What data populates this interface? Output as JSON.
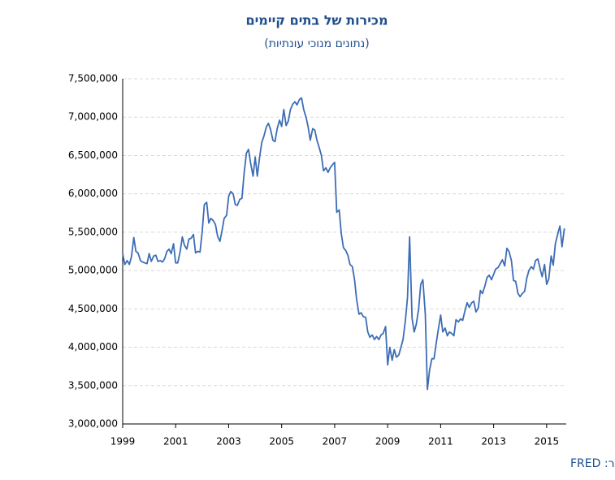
{
  "chart_data": {
    "type": "line",
    "title": "מכירות של בתים קיימים",
    "subtitle": "(נתונים מנוכי עונתיות)",
    "source": "מקור: FRED",
    "x": [
      1999,
      1999.08,
      1999.17,
      1999.25,
      1999.33,
      1999.42,
      1999.5,
      1999.58,
      1999.67,
      1999.75,
      1999.83,
      1999.92,
      2000,
      2000.08,
      2000.17,
      2000.25,
      2000.33,
      2000.42,
      2000.5,
      2000.58,
      2000.67,
      2000.75,
      2000.83,
      2000.92,
      2001,
      2001.08,
      2001.17,
      2001.25,
      2001.33,
      2001.42,
      2001.5,
      2001.58,
      2001.67,
      2001.75,
      2001.83,
      2001.92,
      2002,
      2002.08,
      2002.17,
      2002.25,
      2002.33,
      2002.42,
      2002.5,
      2002.58,
      2002.67,
      2002.75,
      2002.83,
      2002.92,
      2003,
      2003.08,
      2003.17,
      2003.25,
      2003.33,
      2003.42,
      2003.5,
      2003.58,
      2003.67,
      2003.75,
      2003.83,
      2003.92,
      2004,
      2004.08,
      2004.17,
      2004.25,
      2004.33,
      2004.42,
      2004.5,
      2004.58,
      2004.67,
      2004.75,
      2004.83,
      2004.92,
      2005,
      2005.08,
      2005.17,
      2005.25,
      2005.33,
      2005.42,
      2005.5,
      2005.58,
      2005.67,
      2005.75,
      2005.83,
      2005.92,
      2006,
      2006.08,
      2006.17,
      2006.25,
      2006.33,
      2006.42,
      2006.5,
      2006.58,
      2006.67,
      2006.75,
      2006.83,
      2006.92,
      2007,
      2007.08,
      2007.17,
      2007.25,
      2007.33,
      2007.42,
      2007.5,
      2007.58,
      2007.67,
      2007.75,
      2007.83,
      2007.92,
      2008,
      2008.08,
      2008.17,
      2008.25,
      2008.33,
      2008.42,
      2008.5,
      2008.58,
      2008.67,
      2008.75,
      2008.83,
      2008.92,
      2009,
      2009.08,
      2009.17,
      2009.25,
      2009.33,
      2009.42,
      2009.5,
      2009.58,
      2009.67,
      2009.75,
      2009.83,
      2009.92,
      2010,
      2010.08,
      2010.17,
      2010.25,
      2010.33,
      2010.42,
      2010.5,
      2010.58,
      2010.67,
      2010.75,
      2010.83,
      2010.92,
      2011,
      2011.08,
      2011.17,
      2011.25,
      2011.33,
      2011.42,
      2011.5,
      2011.58,
      2011.67,
      2011.75,
      2011.83,
      2011.92,
      2012,
      2012.08,
      2012.17,
      2012.25,
      2012.33,
      2012.42,
      2012.5,
      2012.58,
      2012.67,
      2012.75,
      2012.83,
      2012.92,
      2013,
      2013.08,
      2013.17,
      2013.25,
      2013.33,
      2013.42,
      2013.5,
      2013.58,
      2013.67,
      2013.75,
      2013.83,
      2013.92,
      2014,
      2014.08,
      2014.17,
      2014.25,
      2014.33,
      2014.42,
      2014.5,
      2014.58,
      2014.67,
      2014.75,
      2014.83,
      2014.92,
      2015,
      2015.08,
      2015.17,
      2015.25,
      2015.33,
      2015.42,
      2015.5,
      2015.58,
      2015.67
    ],
    "series": [
      {
        "color": "#3d6db5",
        "values": [
          5220000,
          5080000,
          5130000,
          5080000,
          5180000,
          5430000,
          5250000,
          5230000,
          5130000,
          5110000,
          5100000,
          5090000,
          5220000,
          5120000,
          5190000,
          5200000,
          5120000,
          5130000,
          5110000,
          5150000,
          5250000,
          5280000,
          5220000,
          5350000,
          5100000,
          5100000,
          5250000,
          5440000,
          5330000,
          5280000,
          5410000,
          5420000,
          5470000,
          5230000,
          5250000,
          5240000,
          5500000,
          5860000,
          5890000,
          5620000,
          5680000,
          5650000,
          5600000,
          5450000,
          5380000,
          5520000,
          5680000,
          5720000,
          5970000,
          6030000,
          6000000,
          5860000,
          5850000,
          5930000,
          5940000,
          6260000,
          6530000,
          6580000,
          6400000,
          6230000,
          6480000,
          6230000,
          6480000,
          6670000,
          6750000,
          6870000,
          6920000,
          6840000,
          6700000,
          6680000,
          6850000,
          6960000,
          6880000,
          7100000,
          6890000,
          6950000,
          7100000,
          7170000,
          7200000,
          7160000,
          7230000,
          7250000,
          7100000,
          7000000,
          6870000,
          6700000,
          6850000,
          6830000,
          6700000,
          6600000,
          6500000,
          6300000,
          6340000,
          6280000,
          6340000,
          6380000,
          6410000,
          5760000,
          5790000,
          5480000,
          5300000,
          5260000,
          5200000,
          5080000,
          5050000,
          4880000,
          4620000,
          4430000,
          4450000,
          4400000,
          4390000,
          4200000,
          4130000,
          4160000,
          4100000,
          4140000,
          4100000,
          4160000,
          4180000,
          4270000,
          3770000,
          4000000,
          3830000,
          3970000,
          3870000,
          3900000,
          4000000,
          4100000,
          4350000,
          4650000,
          5440000,
          4380000,
          4200000,
          4300000,
          4500000,
          4820000,
          4880000,
          4430000,
          3450000,
          3700000,
          3850000,
          3850000,
          4050000,
          4250000,
          4420000,
          4200000,
          4250000,
          4150000,
          4200000,
          4180000,
          4150000,
          4360000,
          4330000,
          4370000,
          4350000,
          4480000,
          4580000,
          4520000,
          4580000,
          4600000,
          4460000,
          4510000,
          4740000,
          4700000,
          4800000,
          4910000,
          4940000,
          4880000,
          4950000,
          5020000,
          5040000,
          5090000,
          5140000,
          5060000,
          5290000,
          5250000,
          5130000,
          4870000,
          4860000,
          4700000,
          4660000,
          4700000,
          4730000,
          4900000,
          5000000,
          5050000,
          5020000,
          5130000,
          5150000,
          5030000,
          4920000,
          5080000,
          4820000,
          4890000,
          5190000,
          5070000,
          5350000,
          5480000,
          5580000,
          5310000,
          5550000
        ]
      }
    ],
    "xlim": [
      1999,
      2015.74
    ],
    "xticks": [
      1999,
      2001,
      2003,
      2005,
      2007,
      2009,
      2011,
      2013,
      2015
    ],
    "ylim": [
      3000000,
      7500000
    ],
    "yticks": [
      {
        "value": 3000000,
        "label": "3,000,000"
      },
      {
        "value": 3500000,
        "label": "3,500,000"
      },
      {
        "value": 4000000,
        "label": "4,000,000"
      },
      {
        "value": 4500000,
        "label": "4,500,000"
      },
      {
        "value": 5000000,
        "label": "5,000,000"
      },
      {
        "value": 5500000,
        "label": "5,500,000"
      },
      {
        "value": 6000000,
        "label": "6,000,000"
      },
      {
        "value": 6500000,
        "label": "6,500,000"
      },
      {
        "value": 7000000,
        "label": "7,000,000"
      },
      {
        "value": 7500000,
        "label": "7,500,000"
      }
    ],
    "grid": true
  }
}
